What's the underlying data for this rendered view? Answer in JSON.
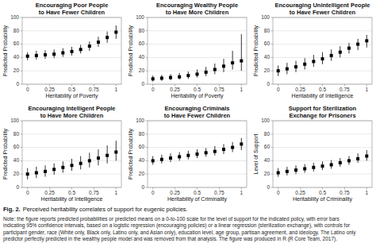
{
  "chart_data": [
    {
      "type": "scatter",
      "title": "Encouraging Poor People\nto Have Fewer Children",
      "x_label": "Heritability of Poverty",
      "y_label": "Predicted Probability",
      "x": [
        0.0,
        0.1,
        0.2,
        0.3,
        0.4,
        0.5,
        0.6,
        0.7,
        0.8,
        0.9,
        1.0
      ],
      "values": [
        42,
        43,
        44,
        45,
        47,
        49,
        52,
        57,
        63,
        70,
        78
      ],
      "lower": [
        36,
        37,
        38,
        39,
        41,
        43,
        46,
        50,
        56,
        62,
        68
      ],
      "upper": [
        48,
        50,
        51,
        52,
        54,
        56,
        59,
        64,
        71,
        79,
        88
      ],
      "color": "black",
      "marker": "square",
      "xlim": [
        -0.06,
        1.06
      ],
      "xticks": [
        0,
        0.25,
        0.5,
        0.75,
        1
      ],
      "ylim": [
        0,
        100
      ],
      "yticks": [
        0,
        20,
        40,
        60,
        80,
        100
      ],
      "grid": true
    },
    {
      "type": "scatter",
      "title": "Encouraging Wealthy People\nto Have More Children",
      "x_label": "Heritability of Poverty",
      "y_label": "Predicted Probability",
      "x": [
        0.0,
        0.1,
        0.2,
        0.3,
        0.4,
        0.5,
        0.6,
        0.7,
        0.8,
        0.9,
        1.0
      ],
      "values": [
        8,
        9,
        10,
        11,
        13,
        15,
        18,
        22,
        27,
        32,
        35
      ],
      "lower": [
        4,
        5,
        6,
        7,
        8,
        10,
        12,
        15,
        18,
        22,
        20
      ],
      "upper": [
        13,
        14,
        15,
        17,
        19,
        22,
        26,
        31,
        38,
        50,
        75
      ],
      "color": "black",
      "marker": "square",
      "xlim": [
        -0.06,
        1.06
      ],
      "xticks": [
        0,
        0.25,
        0.5,
        0.75,
        1
      ],
      "ylim": [
        0,
        100
      ],
      "yticks": [
        0,
        20,
        40,
        60,
        80,
        100
      ],
      "grid": true
    },
    {
      "type": "scatter",
      "title": "Encouraging Unintelligent People\nto Have Fewer Children",
      "x_label": "Heritability of Intelligence",
      "y_label": "Predicted Probability",
      "x": [
        0.0,
        0.1,
        0.2,
        0.3,
        0.4,
        0.5,
        0.6,
        0.7,
        0.8,
        0.9,
        1.0
      ],
      "values": [
        20,
        23,
        26,
        30,
        34,
        38,
        43,
        48,
        54,
        60,
        65
      ],
      "lower": [
        12,
        15,
        18,
        22,
        26,
        30,
        35,
        40,
        46,
        51,
        55
      ],
      "upper": [
        28,
        32,
        35,
        39,
        44,
        48,
        52,
        57,
        62,
        68,
        74
      ],
      "color": "black",
      "marker": "square",
      "xlim": [
        -0.06,
        1.06
      ],
      "xticks": [
        0,
        0.25,
        0.5,
        0.75,
        1
      ],
      "ylim": [
        0,
        100
      ],
      "yticks": [
        0,
        20,
        40,
        60,
        80,
        100
      ],
      "grid": true
    },
    {
      "type": "scatter",
      "title": "Encouraging Intelligent People\nto Have More Children",
      "x_label": "Heritability of Intelligence",
      "y_label": "Predicted Probability",
      "x": [
        0.0,
        0.1,
        0.2,
        0.3,
        0.4,
        0.5,
        0.6,
        0.7,
        0.8,
        0.9,
        1.0
      ],
      "values": [
        20,
        22,
        24,
        27,
        30,
        33,
        36,
        40,
        44,
        48,
        53
      ],
      "lower": [
        12,
        14,
        16,
        19,
        22,
        25,
        27,
        30,
        33,
        36,
        40
      ],
      "upper": [
        29,
        31,
        33,
        36,
        39,
        43,
        47,
        52,
        57,
        63,
        70
      ],
      "color": "black",
      "marker": "square",
      "xlim": [
        -0.06,
        1.06
      ],
      "xticks": [
        0,
        0.25,
        0.5,
        0.75,
        1
      ],
      "ylim": [
        0,
        100
      ],
      "yticks": [
        0,
        20,
        40,
        60,
        80,
        100
      ],
      "grid": true
    },
    {
      "type": "scatter",
      "title": "Encouraging Criminals\nto Have Fewer Children",
      "x_label": "Heritability of Criminality",
      "y_label": "Predicted Probability",
      "x": [
        0.0,
        0.1,
        0.2,
        0.3,
        0.4,
        0.5,
        0.6,
        0.7,
        0.8,
        0.9,
        1.0
      ],
      "values": [
        40,
        42,
        44,
        46,
        48,
        50,
        52,
        54,
        57,
        60,
        65
      ],
      "lower": [
        34,
        36,
        38,
        40,
        42,
        44,
        46,
        48,
        50,
        53,
        56
      ],
      "upper": [
        47,
        49,
        51,
        53,
        55,
        57,
        59,
        62,
        65,
        68,
        74
      ],
      "color": "black",
      "marker": "square",
      "xlim": [
        -0.06,
        1.06
      ],
      "xticks": [
        0,
        0.25,
        0.5,
        0.75,
        1
      ],
      "ylim": [
        0,
        100
      ],
      "yticks": [
        0,
        20,
        40,
        60,
        80,
        100
      ],
      "grid": true
    },
    {
      "type": "scatter",
      "title": "Support for Sterilization\nExchange for Prisoners",
      "x_label": "Heritability of Criminality",
      "y_label": "Level of Support",
      "x": [
        0.0,
        0.1,
        0.2,
        0.3,
        0.4,
        0.5,
        0.6,
        0.7,
        0.8,
        0.9,
        1.0
      ],
      "values": [
        22,
        24,
        26,
        28,
        30,
        32,
        34,
        37,
        40,
        43,
        47
      ],
      "lower": [
        16,
        18,
        20,
        22,
        24,
        26,
        28,
        31,
        34,
        37,
        40
      ],
      "upper": [
        29,
        31,
        33,
        35,
        37,
        39,
        41,
        44,
        47,
        51,
        56
      ],
      "color": "black",
      "marker": "square",
      "xlim": [
        -0.06,
        1.06
      ],
      "xticks": [
        0,
        0.25,
        0.5,
        0.75,
        1
      ],
      "ylim": [
        0,
        100
      ],
      "yticks": [
        0,
        20,
        40,
        60,
        80,
        100
      ],
      "grid": true
    }
  ],
  "caption": {
    "title": "Fig. 2.",
    "text": "Perceived heritability correlates of support for eugenic policies.",
    "note": "Note: the figure reports predicted probabilities or predicted means on a 0-to-100 scale for the level of support for the indicated policy, with error bars\nindicating 95% confidence intervals, based on a logistic regression (encouraging policies) or a linear regression (sterilization exchange), with controls for\nparticipant gender, race (White only, Black only, Latino only, and Asian only), education level, age group, partisan agreement, and ideology. The Latino only\npredictor perfectly predicted in the wealthy people model and was removed from that analysis. The figure was produced in R (R Core Team, 2017)."
  }
}
